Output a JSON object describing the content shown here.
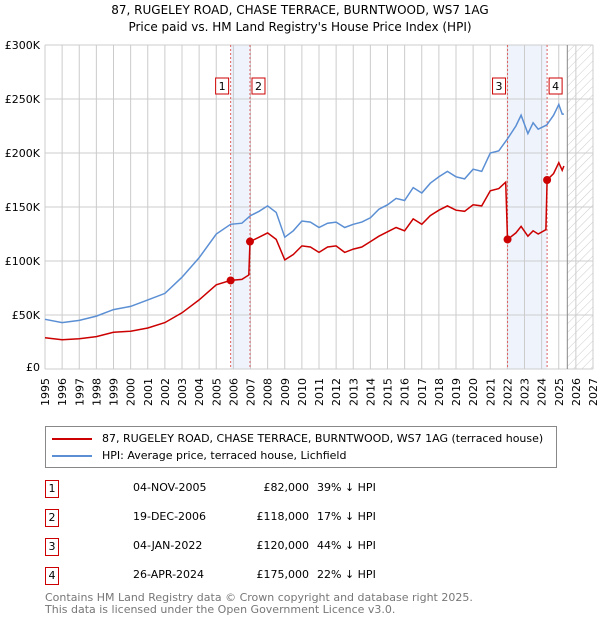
{
  "chart_data": {
    "type": "line",
    "title": "87, RUGELEY ROAD, CHASE TERRACE, BURNTWOOD, WS7 1AG",
    "subtitle": "Price paid vs. HM Land Registry's House Price Index (HPI)",
    "xlim": [
      1995,
      2027
    ],
    "ylim": [
      0,
      300000
    ],
    "x_ticks": [
      "1995",
      "1996",
      "1997",
      "1998",
      "1999",
      "2000",
      "2001",
      "2002",
      "2003",
      "2004",
      "2005",
      "2006",
      "2007",
      "2008",
      "2009",
      "2010",
      "2011",
      "2012",
      "2013",
      "2014",
      "2015",
      "2016",
      "2017",
      "2018",
      "2019",
      "2020",
      "2021",
      "2022",
      "2023",
      "2024",
      "2025",
      "2026",
      "2027"
    ],
    "y_ticks": [
      {
        "v": 0,
        "label": "£0"
      },
      {
        "v": 50000,
        "label": "£50K"
      },
      {
        "v": 100000,
        "label": "£100K"
      },
      {
        "v": 150000,
        "label": "£150K"
      },
      {
        "v": 200000,
        "label": "£200K"
      },
      {
        "v": 250000,
        "label": "£250K"
      },
      {
        "v": 300000,
        "label": "£300K"
      }
    ],
    "grid": true,
    "legend_placement": "below",
    "forecast_start": 2025.5,
    "series": [
      {
        "name": "87, RUGELEY ROAD, CHASE TERRACE, BURNTWOOD, WS7 1AG (terraced house)",
        "color": "#cc0000",
        "x": [
          1995,
          1996,
          1997,
          1998,
          1999,
          2000,
          2001,
          2002,
          2003,
          2004,
          2005,
          2005.84,
          2006.5,
          2006.9,
          2006.97,
          2007.5,
          2008,
          2008.5,
          2009,
          2009.5,
          2010,
          2010.5,
          2011,
          2011.5,
          2012,
          2012.5,
          2013,
          2013.5,
          2014,
          2014.5,
          2015,
          2015.5,
          2016,
          2016.5,
          2017,
          2017.5,
          2018,
          2018.5,
          2019,
          2019.5,
          2020,
          2020.5,
          2021,
          2021.5,
          2021.9,
          2022.01,
          2022.5,
          2022.8,
          2023.2,
          2023.5,
          2023.8,
          2024.25,
          2024.32,
          2024.7,
          2025,
          2025.2,
          2025.3
        ],
        "y": [
          29,
          27,
          28,
          30,
          34,
          35,
          38,
          43,
          52,
          64,
          78,
          82,
          83,
          87,
          118,
          122,
          126,
          120,
          101,
          106,
          114,
          113,
          108,
          113,
          114,
          108,
          111,
          113,
          118,
          123,
          127,
          131,
          128,
          139,
          134,
          142,
          147,
          151,
          147,
          146,
          152,
          151,
          165,
          167,
          173,
          120,
          126,
          132,
          123,
          128,
          125,
          129,
          175,
          181,
          191,
          184,
          188
        ]
      },
      {
        "name": "HPI: Average price, terraced house, Lichfield",
        "color": "#5b8fd4",
        "x": [
          1995,
          1996,
          1997,
          1998,
          1999,
          2000,
          2001,
          2002,
          2003,
          2004,
          2005,
          2005.84,
          2006.5,
          2007,
          2007.5,
          2008,
          2008.5,
          2009,
          2009.5,
          2010,
          2010.5,
          2011,
          2011.5,
          2012,
          2012.5,
          2013,
          2013.5,
          2014,
          2014.5,
          2015,
          2015.5,
          2016,
          2016.5,
          2017,
          2017.5,
          2018,
          2018.5,
          2019,
          2019.5,
          2020,
          2020.5,
          2021,
          2021.5,
          2022,
          2022.5,
          2022.8,
          2023.2,
          2023.5,
          2023.8,
          2024.3,
          2024.7,
          2025,
          2025.2,
          2025.3
        ],
        "y": [
          46,
          43,
          45,
          49,
          55,
          58,
          64,
          70,
          85,
          103,
          125,
          134,
          135,
          142,
          146,
          151,
          145,
          122,
          128,
          137,
          136,
          131,
          135,
          136,
          131,
          134,
          136,
          140,
          148,
          152,
          158,
          156,
          168,
          163,
          172,
          178,
          183,
          178,
          176,
          185,
          183,
          200,
          202,
          213,
          225,
          235,
          218,
          228,
          222,
          226,
          235,
          245,
          236,
          236
        ]
      }
    ],
    "y_units_multiplier": 1000,
    "sales": [
      {
        "num": "1",
        "date": "04-NOV-2005",
        "x": 2005.84,
        "price": "£82,000",
        "value": 82,
        "hpi": "39% ↓ HPI"
      },
      {
        "num": "2",
        "date": "19-DEC-2006",
        "x": 2006.97,
        "price": "£118,000",
        "value": 118,
        "hpi": "17% ↓ HPI"
      },
      {
        "num": "3",
        "date": "04-JAN-2022",
        "x": 2022.01,
        "price": "£120,000",
        "value": 120,
        "hpi": "44% ↓ HPI"
      },
      {
        "num": "4",
        "date": "26-APR-2024",
        "x": 2024.32,
        "price": "£175,000",
        "value": 175,
        "hpi": "22% ↓ HPI"
      }
    ]
  },
  "footer": {
    "line1": "Contains HM Land Registry data © Crown copyright and database right 2025.",
    "line2": "This data is licensed under the Open Government Licence v3.0."
  }
}
